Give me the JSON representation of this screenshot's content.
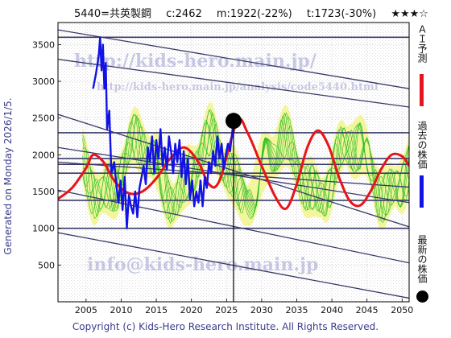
{
  "header": {
    "code_name": "5440=共英製鋼",
    "current": "c:2462",
    "mid": "m:1922(-22%)",
    "target": "t:1723(-30%)",
    "stars": "★★★☆"
  },
  "side_label": "Generated on Monday 2026/1/5.",
  "footer": "Copyright (c) Kids-Hero Research Institute. All Rights Reserved.",
  "watermarks": {
    "site": "http://kids-hero.main.jp/",
    "page": "http://kids-hero.main.jp/analysis/code5440.html",
    "email": "info@kids-hero.main.jp"
  },
  "legend": {
    "ai": "ＡＩ予測",
    "past": "過去の株価",
    "latest": "最新の株価"
  },
  "colors": {
    "ai_line": "#e8141b",
    "price_line": "#1212e6",
    "band_fill": "#f2f58c",
    "band_lines": "#22bb22",
    "trend_lines": "#3a3a6a",
    "frame": "#000000"
  },
  "chart_data": {
    "type": "line",
    "xlim": [
      2001,
      2051
    ],
    "ylim": [
      0,
      3800
    ],
    "x_ticks": [
      2005,
      2010,
      2015,
      2020,
      2025,
      2030,
      2035,
      2040,
      2045,
      2050
    ],
    "y_ticks": [
      500,
      1000,
      1500,
      2000,
      2500,
      3000,
      3500
    ],
    "grid": true,
    "latest_point": {
      "x": 2026.0,
      "y": 2462
    },
    "vertical_marker_x": 2026.0,
    "horizontal_levels": [
      3600,
      2300,
      1950,
      1870,
      1750,
      1380,
      1000
    ],
    "trend_lines": [
      {
        "x": [
          2001,
          2051
        ],
        "y": [
          3700,
          2900
        ]
      },
      {
        "x": [
          2001,
          2051
        ],
        "y": [
          3300,
          2650
        ]
      },
      {
        "x": [
          2001,
          2051
        ],
        "y": [
          2550,
          1020
        ]
      },
      {
        "x": [
          2001,
          2051
        ],
        "y": [
          2100,
          1350
        ]
      },
      {
        "x": [
          2001,
          2051
        ],
        "y": [
          1900,
          1560
        ]
      },
      {
        "x": [
          2001,
          2051
        ],
        "y": [
          1520,
          530
        ]
      },
      {
        "x": [
          2001,
          2051
        ],
        "y": [
          940,
          50
        ]
      }
    ],
    "series": [
      {
        "name": "ＡＩ予測",
        "x": [
          2001,
          2003,
          2005,
          2006,
          2007.5,
          2009,
          2011,
          2013,
          2015,
          2017,
          2019,
          2021,
          2022.5,
          2024,
          2026.5,
          2028,
          2030,
          2032,
          2033.5,
          2035,
          2036.5,
          2038,
          2039.5,
          2041,
          2042.5,
          2044,
          2045.5,
          2047,
          2048.5,
          2050,
          2051
        ],
        "y": [
          1400,
          1550,
          1820,
          2000,
          1900,
          1650,
          1480,
          1500,
          1680,
          1950,
          2100,
          1900,
          1600,
          1650,
          2450,
          2300,
          1850,
          1420,
          1270,
          1600,
          2100,
          2330,
          2130,
          1700,
          1380,
          1310,
          1500,
          1800,
          2000,
          1980,
          1850
        ]
      },
      {
        "name": "過去の株価",
        "x": [
          2006.0,
          2006.4,
          2006.8,
          2007.0,
          2007.2,
          2007.4,
          2007.6,
          2007.8,
          2008.0,
          2008.3,
          2008.6,
          2009.0,
          2009.3,
          2009.6,
          2009.9,
          2010.2,
          2010.5,
          2010.8,
          2011.1,
          2011.4,
          2011.7,
          2012.0,
          2012.3,
          2012.6,
          2012.9,
          2013.2,
          2013.5,
          2013.8,
          2014.1,
          2014.4,
          2014.7,
          2015.0,
          2015.3,
          2015.6,
          2015.9,
          2016.2,
          2016.5,
          2016.8,
          2017.1,
          2017.4,
          2017.7,
          2018.0,
          2018.3,
          2018.6,
          2018.9,
          2019.2,
          2019.5,
          2019.8,
          2020.1,
          2020.4,
          2020.7,
          2021.0,
          2021.3,
          2021.6,
          2021.9,
          2022.2,
          2022.5,
          2022.8,
          2023.1,
          2023.4,
          2023.7,
          2024.0,
          2024.3,
          2024.6,
          2024.9,
          2025.2,
          2025.5,
          2025.8,
          2026.0
        ],
        "y": [
          2900,
          3100,
          3350,
          3600,
          3150,
          3500,
          2900,
          3250,
          2350,
          2600,
          1750,
          1900,
          1600,
          1350,
          1650,
          1250,
          1700,
          1000,
          1450,
          1300,
          1200,
          1500,
          1150,
          1550,
          1700,
          1850,
          1600,
          2100,
          1900,
          2250,
          1750,
          2200,
          1950,
          2350,
          1850,
          2100,
          1800,
          2250,
          2050,
          1750,
          2150,
          1900,
          2200,
          1700,
          2050,
          1600,
          1950,
          1400,
          1650,
          1300,
          1500,
          1350,
          1650,
          1300,
          1700,
          1550,
          1900,
          1750,
          2050,
          1850,
          2250,
          1950,
          2150,
          1800,
          2000,
          2150,
          2050,
          2300,
          2462
        ]
      }
    ]
  }
}
